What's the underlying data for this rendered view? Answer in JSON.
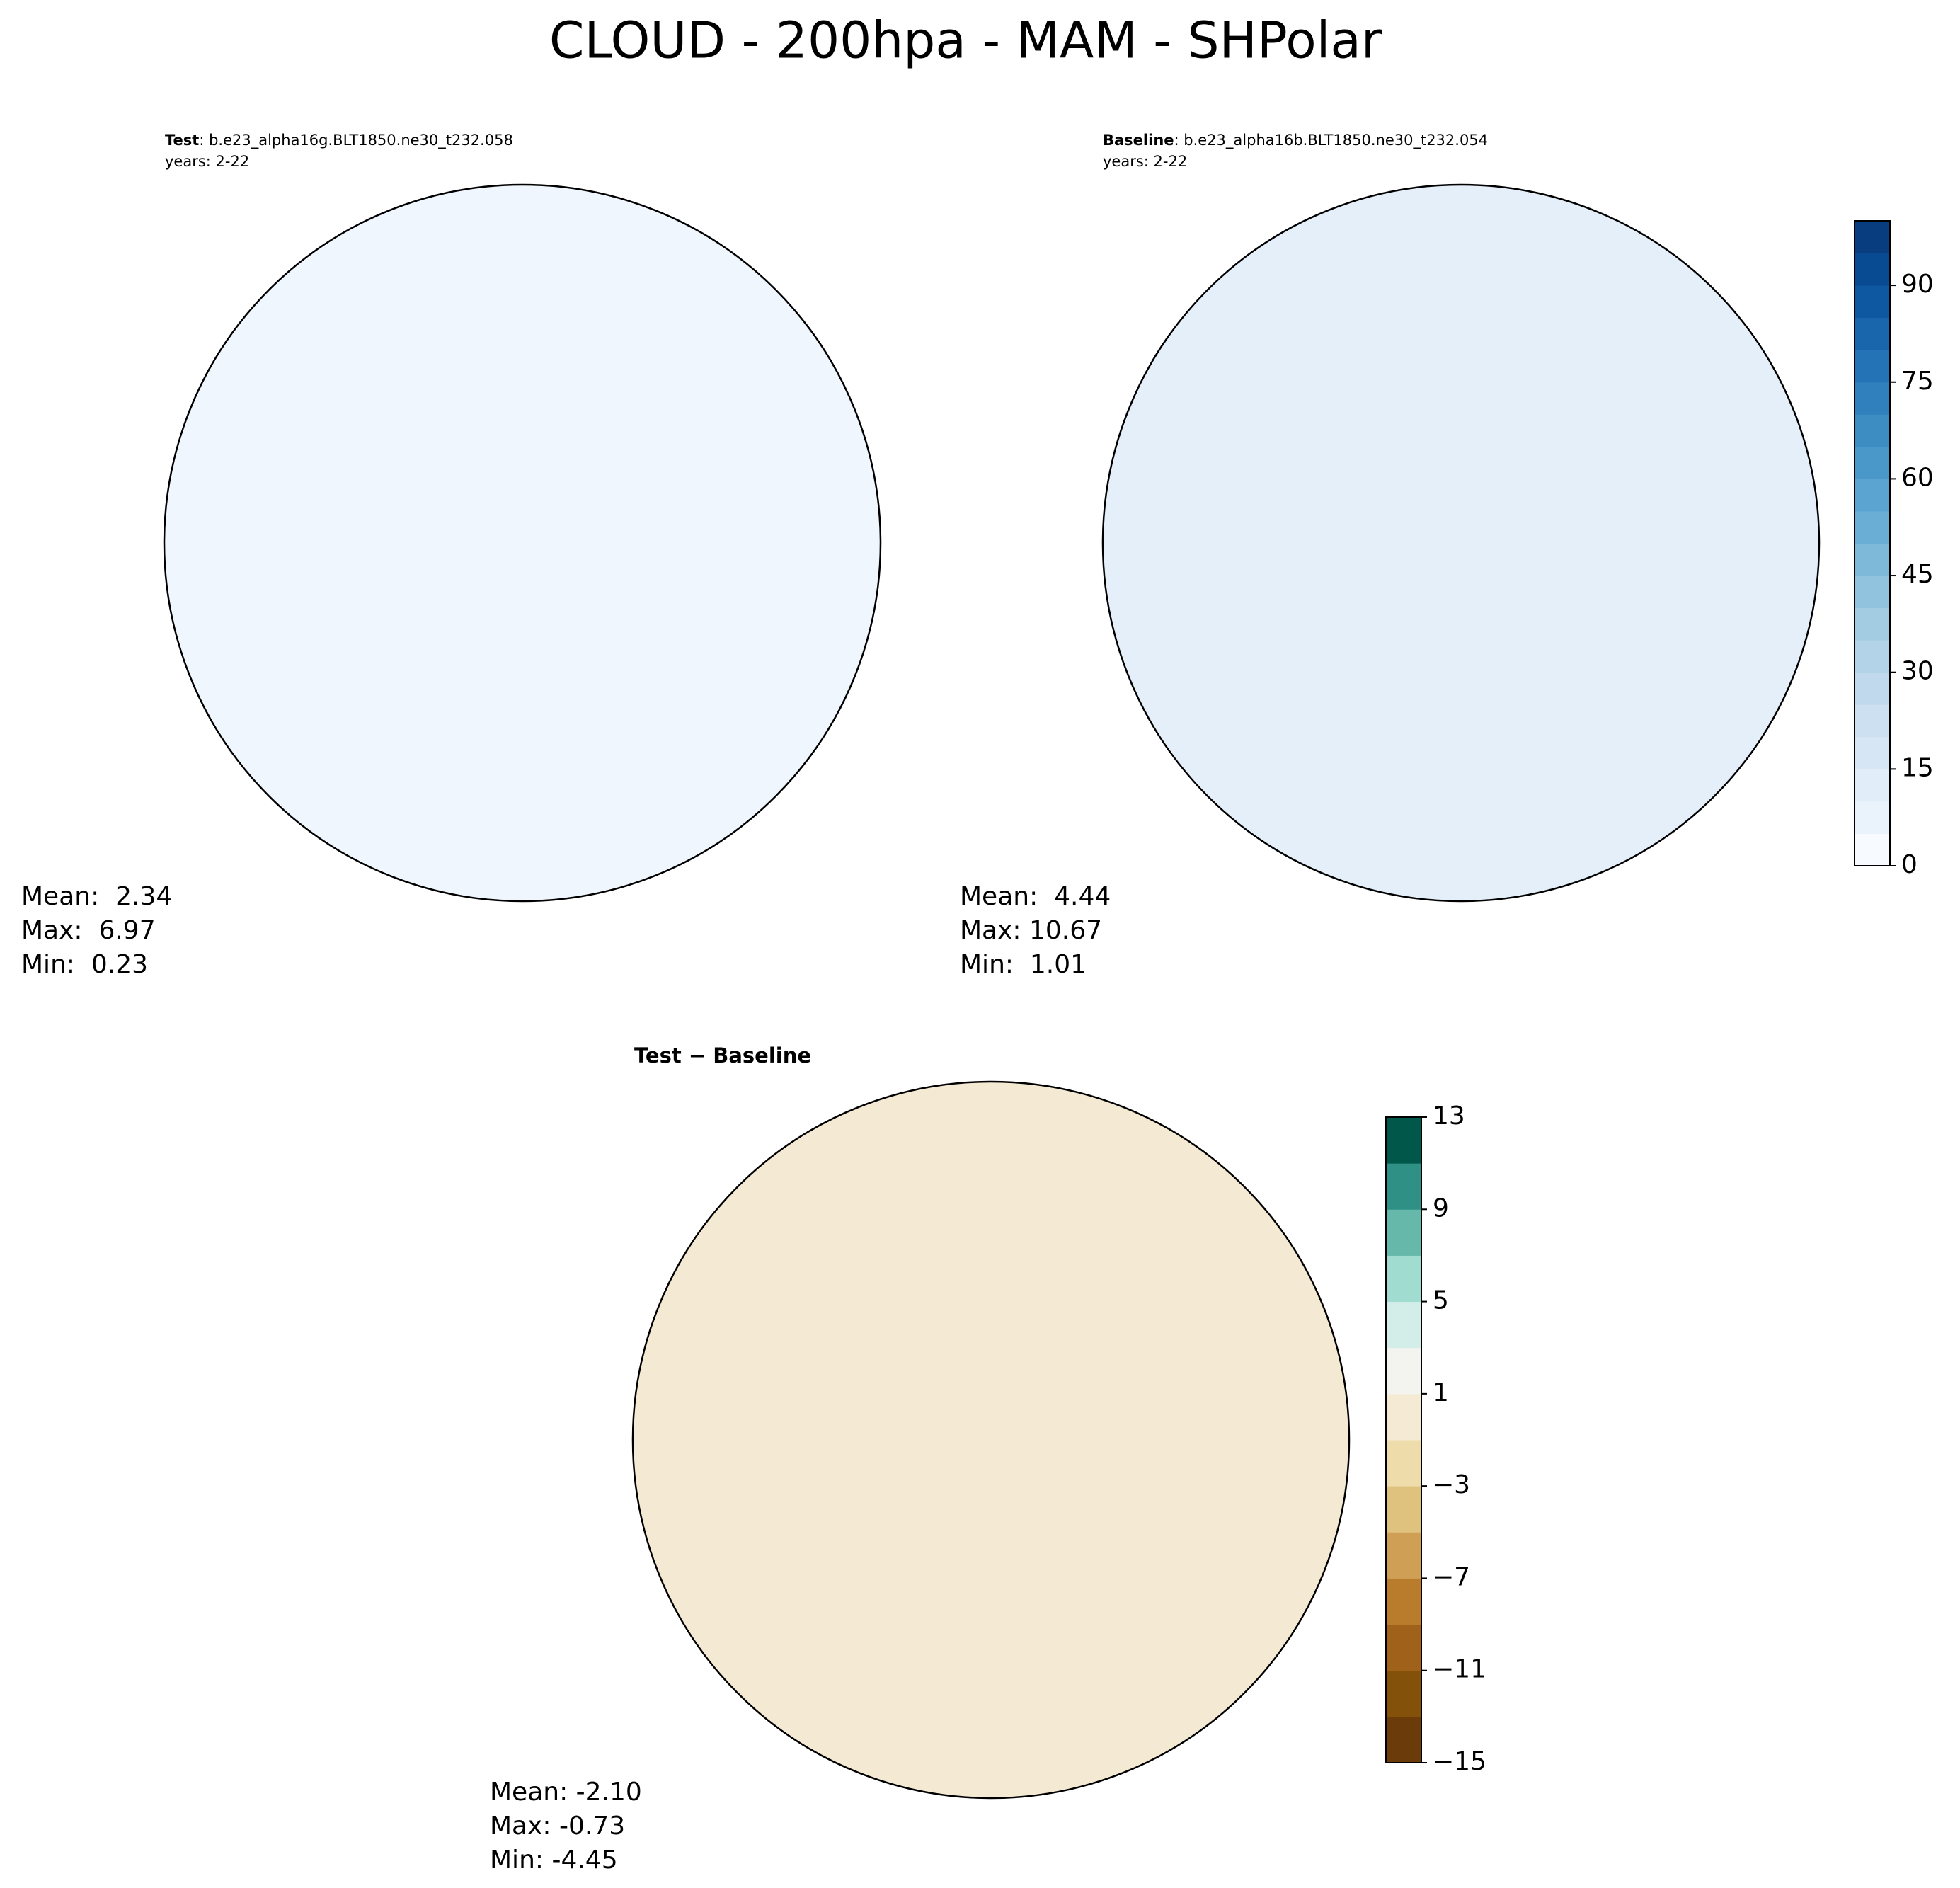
{
  "title": "CLOUD - 200hpa - MAM - SHPolar",
  "panels": [
    {
      "label": "Test",
      "case": ": b.e23_alpha16g.BLT1850.ne30_t232.058",
      "years": "years: 2-22",
      "fill": "#f0f6fd",
      "stats": [
        "Mean:  2.34",
        "Max:  6.97",
        "Min:  0.23"
      ]
    },
    {
      "label": "Baseline",
      "case": ": b.e23_alpha16b.BLT1850.ne30_t232.054",
      "years": "years: 2-22",
      "fill": "#e5eff9",
      "stats": [
        "Mean:  4.44",
        "Max: 10.67",
        "Min:  1.01"
      ]
    },
    {
      "label": "Test − Baseline",
      "fill": "#f4ead3",
      "stats": [
        "Mean: -2.10",
        "Max: -0.73",
        "Min: -4.45"
      ]
    }
  ],
  "colorbars": [
    {
      "lim": [
        0,
        100
      ],
      "ticks": [
        0,
        15,
        30,
        45,
        60,
        75,
        90
      ],
      "colors": [
        "#f7fbff",
        "#eaf2fb",
        "#e1edf8",
        "#d6e6f4",
        "#cde0f1",
        "#c1d9ed",
        "#b3d3e8",
        "#a3cce3",
        "#91c3de",
        "#7fb9da",
        "#6aaed6",
        "#5ba3d0",
        "#4a98c9",
        "#3d8dc3",
        "#3080bd",
        "#2373b6",
        "#1966ad",
        "#0e58a2",
        "#084b93",
        "#083d7f"
      ]
    },
    {
      "lim": [
        -15,
        13
      ],
      "ticks": [
        {
          "value": -15,
          "label": "−15"
        },
        {
          "value": -11,
          "label": "−11"
        },
        {
          "value": -7,
          "label": "−7"
        },
        {
          "value": -3,
          "label": "−3"
        },
        1,
        5,
        9,
        13
      ],
      "colors": [
        "#6b3c09",
        "#84510a",
        "#a0611b",
        "#b97b2c",
        "#cf9f55",
        "#dfc27d",
        "#eedcaa",
        "#f5ebd4",
        "#f3f3f0",
        "#d3ede9",
        "#a1dcd1",
        "#66b8ab",
        "#2f9186",
        "#00574a"
      ]
    }
  ]
}
